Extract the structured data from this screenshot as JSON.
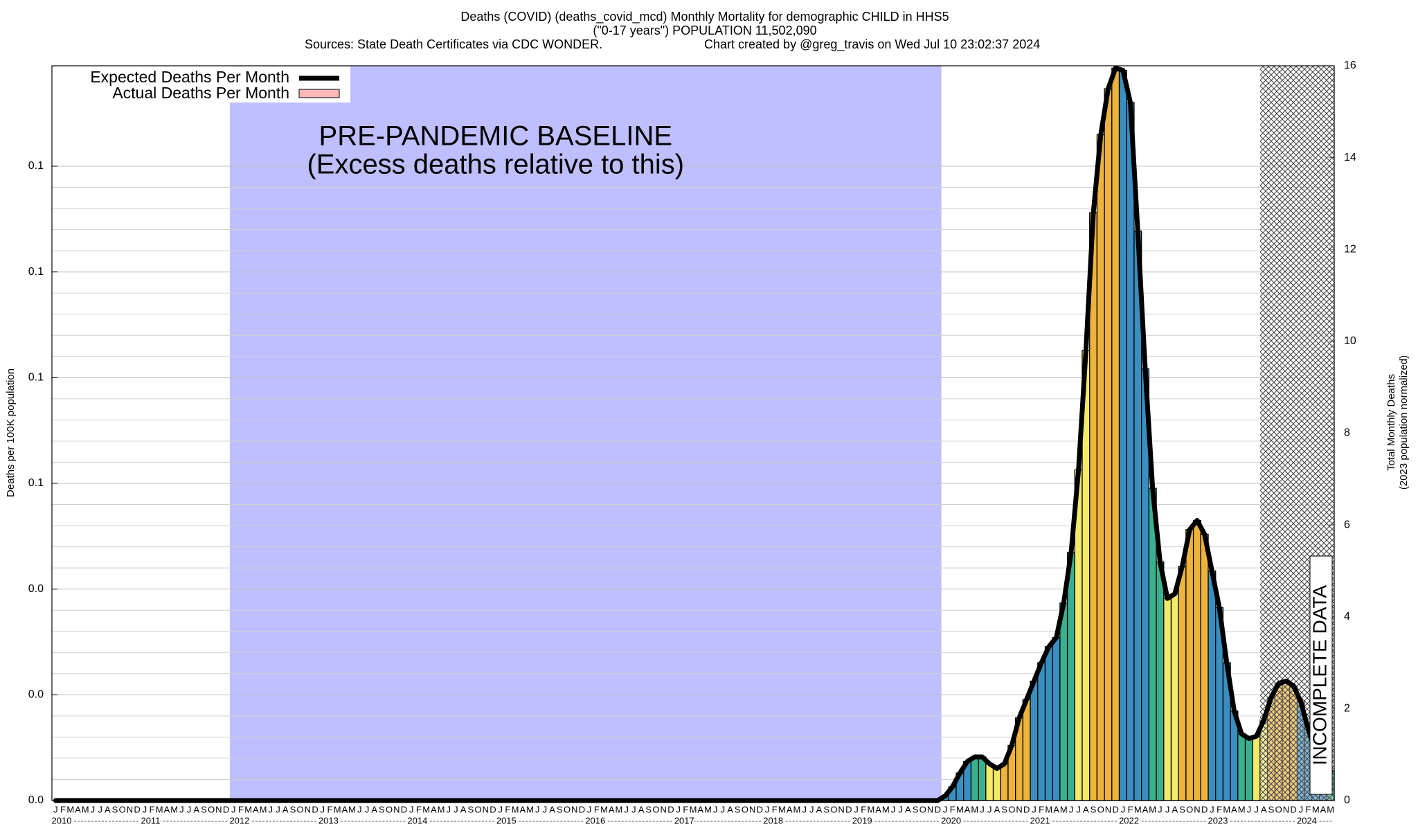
{
  "chart_data": {
    "type": "bar",
    "title": [
      "Deaths (COVID) (deaths_covid_mcd) Monthly Mortality for demographic CHILD in HHS5",
      "(\"0-17 years\") POPULATION 11,502,090"
    ],
    "sources": "Sources: State Death Certificates via CDC WONDER.",
    "credit": "Chart created by @greg_travis on Wed Jul 10 23:02:37 2024",
    "ylabel": "Deaths per 100K population",
    "y2label": [
      "Total Monthly Deaths",
      "(2023 population normalized)"
    ],
    "baseline": {
      "from": "2012",
      "to": "2020",
      "label": [
        "PRE-PANDEMIC BASELINE",
        "(Excess deaths relative to this)"
      ]
    },
    "incomplete_label": "INCOMPLETE DATA",
    "years": [
      "2010",
      "2011",
      "2012",
      "2013",
      "2014",
      "2015",
      "2016",
      "2017",
      "2018",
      "2019",
      "2020",
      "2021",
      "2022",
      "2023",
      "2024"
    ],
    "categories": [
      "J",
      "F",
      "M",
      "A",
      "M",
      "J",
      "J",
      "A",
      "S",
      "O",
      "N",
      "D",
      "J",
      "F",
      "M",
      "A",
      "M",
      "J",
      "J",
      "A",
      "S",
      "O",
      "N",
      "D",
      "J",
      "F",
      "M",
      "A",
      "M",
      "J",
      "J",
      "A",
      "S",
      "O",
      "N",
      "D",
      "J",
      "F",
      "M",
      "A",
      "M",
      "J",
      "J",
      "A",
      "S",
      "O",
      "N",
      "D",
      "J",
      "F",
      "M",
      "A",
      "M",
      "J",
      "J",
      "A",
      "S",
      "O",
      "N",
      "D",
      "J",
      "F",
      "M",
      "A",
      "M",
      "J",
      "J",
      "A",
      "S",
      "O",
      "N",
      "D",
      "J",
      "F",
      "M",
      "A",
      "M",
      "J",
      "J",
      "A",
      "S",
      "O",
      "N",
      "D",
      "J",
      "F",
      "M",
      "A",
      "M",
      "J",
      "J",
      "A",
      "S",
      "O",
      "N",
      "D",
      "J",
      "F",
      "M",
      "A",
      "M",
      "J",
      "J",
      "A",
      "S",
      "O",
      "N",
      "D",
      "J",
      "F",
      "M",
      "A",
      "M",
      "J",
      "J",
      "A",
      "S",
      "O",
      "N",
      "D",
      "J",
      "F",
      "M",
      "A",
      "M",
      "J",
      "J",
      "A",
      "S",
      "O",
      "N",
      "D",
      "J",
      "F",
      "M",
      "A",
      "M",
      "J",
      "J",
      "A",
      "S",
      "O",
      "N",
      "D",
      "J",
      "F",
      "M",
      "A",
      "M",
      "J",
      "J",
      "A",
      "S",
      "O",
      "N",
      "D",
      "J",
      "F",
      "M",
      "A",
      "M",
      "J",
      "J",
      "A",
      "S",
      "O",
      "N",
      "D",
      "J",
      "F",
      "M",
      "A",
      "M"
    ],
    "month_colors": [
      "#3a8fc0",
      "#3a8fc0",
      "#3a8fc0",
      "#3a8fc0",
      "#3bb08f",
      "#3bb08f",
      "#f4ea6a",
      "#f4ea6a",
      "#eeb33c",
      "#eeb33c",
      "#eeb33c",
      "#eeb33c"
    ],
    "series": [
      {
        "name": "Expected Deaths Per Month",
        "color": "#000000",
        "type": "line",
        "axis": "y2",
        "values": [
          0,
          0,
          0,
          0,
          0,
          0,
          0,
          0,
          0,
          0,
          0,
          0,
          0,
          0,
          0,
          0,
          0,
          0,
          0,
          0,
          0,
          0,
          0,
          0,
          0,
          0,
          0,
          0,
          0,
          0,
          0,
          0,
          0,
          0,
          0,
          0,
          0,
          0,
          0,
          0,
          0,
          0,
          0,
          0,
          0,
          0,
          0,
          0,
          0,
          0,
          0,
          0,
          0,
          0,
          0,
          0,
          0,
          0,
          0,
          0,
          0,
          0,
          0,
          0,
          0,
          0,
          0,
          0,
          0,
          0,
          0,
          0,
          0,
          0,
          0,
          0,
          0,
          0,
          0,
          0,
          0,
          0,
          0,
          0,
          0,
          0,
          0,
          0,
          0,
          0,
          0,
          0,
          0,
          0,
          0,
          0,
          0,
          0,
          0,
          0,
          0,
          0,
          0,
          0,
          0,
          0,
          0,
          0,
          0,
          0,
          0,
          0,
          0,
          0,
          0,
          0,
          0,
          0,
          0,
          0,
          0.1,
          0.3,
          0.6,
          0.85,
          0.95,
          0.95,
          0.8,
          0.7,
          0.8,
          1.2,
          1.8,
          2.2,
          2.6,
          3.0,
          3.35,
          3.55,
          4.3,
          5.4,
          7.2,
          9.8,
          12.8,
          14.5,
          15.5,
          15.95,
          15.9,
          15.2,
          12.4,
          9.4,
          6.8,
          5.2,
          4.4,
          4.5,
          5.1,
          5.9,
          6.1,
          5.8,
          5.0,
          4.2,
          3.0,
          1.95,
          1.45,
          1.35,
          1.4,
          1.75,
          2.25,
          2.55,
          2.6,
          2.5,
          2.15,
          1.55,
          1.05,
          0.85,
          0.65
        ]
      },
      {
        "name": "Actual Deaths Per Month",
        "color": "#ffb6b6",
        "type": "bar",
        "axis": "y2",
        "values": [
          0,
          0,
          0,
          0,
          0,
          0,
          0,
          0,
          0,
          0,
          0,
          0,
          0,
          0,
          0,
          0,
          0,
          0,
          0,
          0,
          0,
          0,
          0,
          0,
          0,
          0,
          0,
          0,
          0,
          0,
          0,
          0,
          0,
          0,
          0,
          0,
          0,
          0,
          0,
          0,
          0,
          0,
          0,
          0,
          0,
          0,
          0,
          0,
          0,
          0,
          0,
          0,
          0,
          0,
          0,
          0,
          0,
          0,
          0,
          0,
          0,
          0,
          0,
          0,
          0,
          0,
          0,
          0,
          0,
          0,
          0,
          0,
          0,
          0,
          0,
          0,
          0,
          0,
          0,
          0,
          0,
          0,
          0,
          0,
          0,
          0,
          0,
          0,
          0,
          0,
          0,
          0,
          0,
          0,
          0,
          0,
          0,
          0,
          0,
          0,
          0,
          0,
          0,
          0,
          0,
          0,
          0,
          0,
          0,
          0,
          0,
          0,
          0,
          0,
          0,
          0,
          0,
          0,
          0,
          0,
          0.1,
          0.3,
          0.6,
          0.85,
          0.95,
          0.95,
          0.8,
          0.7,
          0.8,
          1.2,
          1.8,
          2.2,
          2.6,
          3.0,
          3.35,
          3.55,
          4.3,
          5.4,
          7.2,
          9.8,
          12.8,
          14.5,
          15.5,
          15.95,
          15.9,
          15.2,
          12.4,
          9.4,
          6.8,
          5.2,
          4.4,
          4.5,
          5.1,
          5.9,
          6.1,
          5.8,
          5.0,
          4.2,
          3.0,
          1.95,
          1.45,
          1.35,
          1.4,
          1.75,
          2.25,
          2.55,
          2.6,
          2.5,
          2.15,
          1.55,
          1.05,
          0.85,
          0.65
        ]
      }
    ],
    "ylim": [
      0,
      0.139
    ],
    "yticks": [
      {
        "value": 0,
        "label": "0.0"
      },
      {
        "value": 0.02,
        "label": "0.0"
      },
      {
        "value": 0.04,
        "label": "0.0"
      },
      {
        "value": 0.06,
        "label": "0.1"
      },
      {
        "value": 0.08,
        "label": "0.1"
      },
      {
        "value": 0.1,
        "label": "0.1"
      },
      {
        "value": 0.12,
        "label": "0.1"
      }
    ],
    "y2lim": [
      0,
      16
    ],
    "y2ticks": [
      0,
      2,
      4,
      6,
      8,
      10,
      12,
      14,
      16
    ],
    "grid": true,
    "legend": "upper left"
  }
}
